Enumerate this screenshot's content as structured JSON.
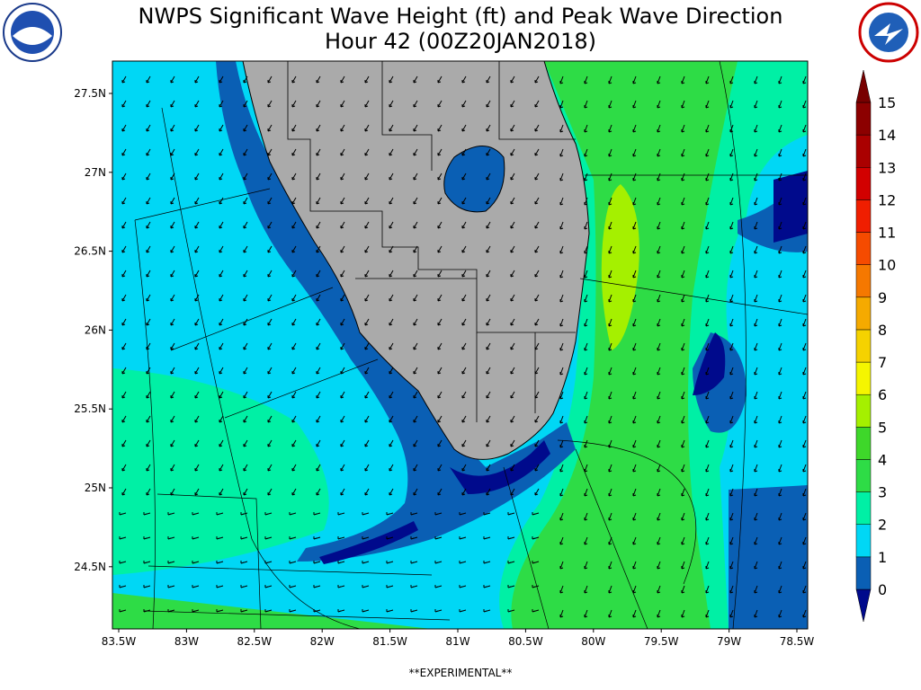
{
  "header": {
    "title": [
      "NWPS Significant Wave Height (ft) and Peak Wave Direction",
      "Hour 42 (00Z20JAN2018)"
    ]
  },
  "map": {
    "lat_labels": [
      "27.5N",
      "27N",
      "26.5N",
      "26N",
      "25.5N",
      "25N",
      "24.5N"
    ],
    "lon_labels": [
      "83.5W",
      "83W",
      "82.5W",
      "82W",
      "81.5W",
      "81W",
      "80.5W",
      "80W",
      "79.5W",
      "79W",
      "78.5W"
    ]
  },
  "colorbar": {
    "ticks": [
      0,
      1,
      2,
      3,
      4,
      5,
      6,
      7,
      8,
      9,
      10,
      11,
      12,
      13,
      14,
      15
    ],
    "colors": [
      "#000a8c",
      "#0a5fb4",
      "#00d7f5",
      "#00f0a5",
      "#2edc46",
      "#3ed72a",
      "#a5f000",
      "#f5f500",
      "#f5d200",
      "#f5aa00",
      "#f57800",
      "#f54b00",
      "#f01e00",
      "#d20000",
      "#aa0000",
      "#8c0000",
      "#780000"
    ]
  },
  "footer": "**EXPERIMENTAL**"
}
